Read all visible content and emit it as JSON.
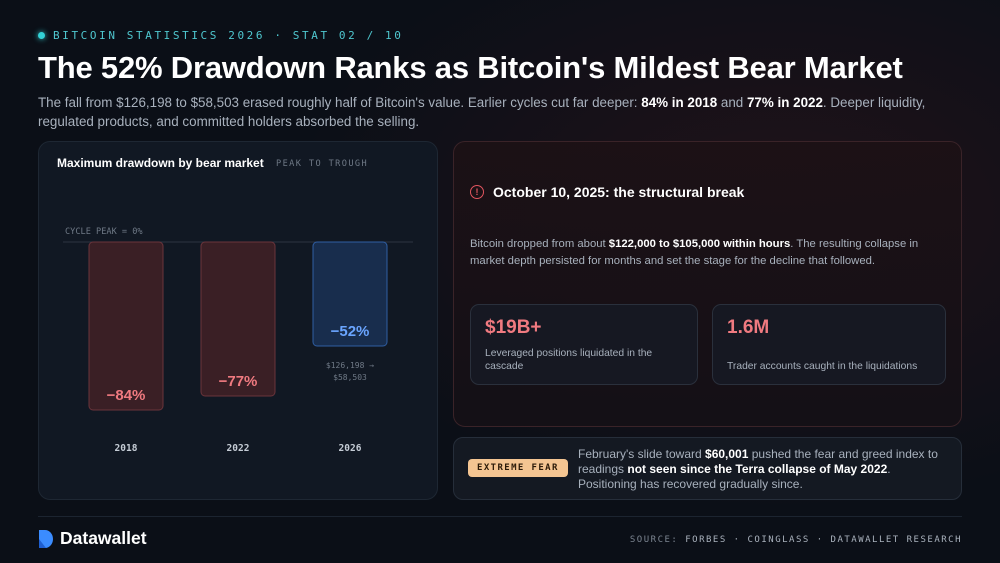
{
  "header": {
    "eyebrow": "BITCOIN STATISTICS 2026 · STAT 02 / 10",
    "title": "The 52% Drawdown Ranks as Bitcoin's Mildest Bear Market",
    "subtitle": {
      "part1": "The fall from $126,198 to $58,503 erased roughly half of Bitcoin's value. Earlier cycles cut far deeper: ",
      "bold1": "84% in 2018",
      "part2": " and ",
      "bold2": "77% in 2022",
      "part3": ". Deeper liquidity, regulated products, and committed holders absorbed the selling."
    }
  },
  "chart_panel": {
    "title": "Maximum drawdown by bear market",
    "subtitle": "PEAK TO TROUGH"
  },
  "chart_data": {
    "type": "bar",
    "title": "Maximum drawdown by bear market",
    "subtitle": "PEAK TO TROUGH",
    "reference_line_label": "CYCLE PEAK = 0%",
    "categories": [
      "2018",
      "2022",
      "2026"
    ],
    "values": [
      -84,
      -77,
      -52
    ],
    "value_labels": [
      "−84%",
      "−77%",
      "−52%"
    ],
    "annotations": [
      {
        "category": "2026",
        "lines": [
          "$126,198 →",
          "$58,503"
        ]
      }
    ],
    "colors": {
      "historical_fill": "#3a1f25",
      "historical_stroke": "#6b343b",
      "historical_label": "#f07a80",
      "current_fill": "#182d4d",
      "current_stroke": "#2f5ea3",
      "current_label": "#6aa5ff"
    },
    "ylim": [
      -100,
      0
    ],
    "grid": false
  },
  "structural_break": {
    "title": "October 10, 2025: the structural break",
    "body_part1": "Bitcoin dropped from about ",
    "body_bold": "$122,000 to $105,000 within hours",
    "body_part2": ". The resulting collapse in market depth persisted for months and set the stage for the decline that followed.",
    "icon": "alert-circle-icon",
    "stats": [
      {
        "value": "$19B+",
        "label": "Leveraged positions liquidated in the cascade"
      },
      {
        "value": "1.6M",
        "label": "Trader accounts caught in the liquidations"
      }
    ]
  },
  "fear_panel": {
    "badge": "EXTREME FEAR",
    "text_part1": "February's slide toward ",
    "text_bold1": "$60,001",
    "text_part2": " pushed the fear and greed index to readings ",
    "text_bold2": "not seen since the Terra collapse of May 2022",
    "text_part3": ". Positioning has recovered gradually since."
  },
  "footer": {
    "brand": "Datawallet",
    "source_label": "SOURCE:",
    "sources": "FORBES · COINGLASS · DATAWALLET RESEARCH"
  },
  "colors": {
    "accent_cyan": "#33d1d6",
    "accent_red": "#f07a80",
    "accent_blue": "#6aa5ff",
    "badge": "#f4c592",
    "brand_blue": "#3b8cff"
  }
}
